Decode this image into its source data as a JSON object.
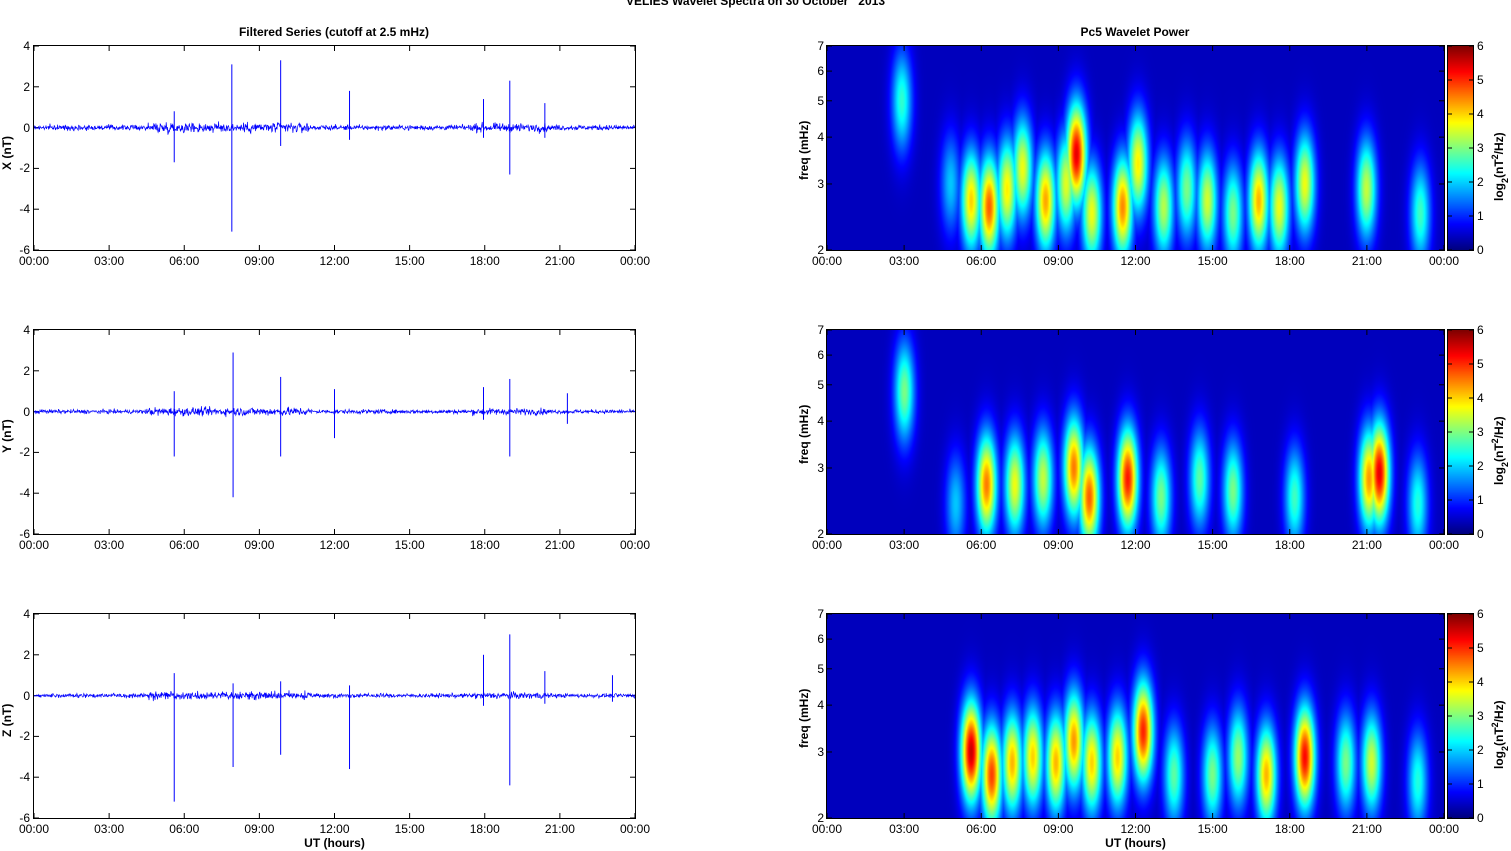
{
  "title": "VELIES Wavelet Spectra on 30 October   2013",
  "left_panel_title": "Filtered Series (cutoff at 2.5 mHz)",
  "right_panel_title": "Pc5 Wavelet Power",
  "x_axis_label": "UT (hours)",
  "colorbar": {
    "label": "log2(nT^2/Hz)",
    "ticks": [
      "0",
      "1",
      "2",
      "3",
      "4",
      "5",
      "6"
    ],
    "colormap": "jet",
    "range": [
      0,
      6
    ]
  },
  "colors": {
    "series_line": "#0000ff",
    "spectrogram_background": "#00008f"
  },
  "chart_data": [
    {
      "type": "line",
      "component": "X",
      "ylabel": "X (nT)",
      "ylim": [
        -6,
        4
      ],
      "yticks": [
        "4",
        "2",
        "0",
        "-2",
        "-4",
        "-6"
      ],
      "xticks": [
        "00:00",
        "03:00",
        "06:00",
        "09:00",
        "12:00",
        "15:00",
        "18:00",
        "21:00",
        "00:00"
      ],
      "xlim_hours": [
        0,
        24
      ],
      "baseline_noise_nT": 0.25,
      "spikes": [
        {
          "t": 5.6,
          "hi": 0.8,
          "lo": -1.7
        },
        {
          "t": 7.9,
          "hi": 3.1,
          "lo": -5.1
        },
        {
          "t": 9.85,
          "hi": 3.3,
          "lo": -0.9
        },
        {
          "t": 12.6,
          "hi": 1.8,
          "lo": -0.6
        },
        {
          "t": 17.95,
          "hi": 1.4,
          "lo": -0.5
        },
        {
          "t": 19.0,
          "hi": 2.3,
          "lo": -2.3
        },
        {
          "t": 20.4,
          "hi": 1.2,
          "lo": -0.5
        }
      ]
    },
    {
      "type": "line",
      "component": "Y",
      "ylabel": "Y (nT)",
      "ylim": [
        -6,
        4
      ],
      "yticks": [
        "4",
        "2",
        "0",
        "-2",
        "-4",
        "-6"
      ],
      "xticks": [
        "00:00",
        "03:00",
        "06:00",
        "09:00",
        "12:00",
        "15:00",
        "18:00",
        "21:00",
        "00:00"
      ],
      "xlim_hours": [
        0,
        24
      ],
      "baseline_noise_nT": 0.2,
      "spikes": [
        {
          "t": 5.6,
          "hi": 1.0,
          "lo": -2.2
        },
        {
          "t": 7.95,
          "hi": 2.9,
          "lo": -4.2
        },
        {
          "t": 9.85,
          "hi": 1.7,
          "lo": -2.2
        },
        {
          "t": 12.0,
          "hi": 1.1,
          "lo": -1.3
        },
        {
          "t": 17.95,
          "hi": 1.2,
          "lo": -0.4
        },
        {
          "t": 19.0,
          "hi": 1.6,
          "lo": -2.2
        },
        {
          "t": 21.3,
          "hi": 0.9,
          "lo": -0.6
        }
      ]
    },
    {
      "type": "line",
      "component": "Z",
      "ylabel": "Z (nT)",
      "ylim": [
        -6,
        4
      ],
      "yticks": [
        "4",
        "2",
        "0",
        "-2",
        "-4",
        "-6"
      ],
      "xticks": [
        "00:00",
        "03:00",
        "06:00",
        "09:00",
        "12:00",
        "15:00",
        "18:00",
        "21:00",
        "00:00"
      ],
      "xlim_hours": [
        0,
        24
      ],
      "baseline_noise_nT": 0.2,
      "spikes": [
        {
          "t": 5.6,
          "hi": 1.1,
          "lo": -5.2
        },
        {
          "t": 7.95,
          "hi": 0.6,
          "lo": -3.5
        },
        {
          "t": 9.85,
          "hi": 0.7,
          "lo": -2.9
        },
        {
          "t": 12.6,
          "hi": 0.5,
          "lo": -3.6
        },
        {
          "t": 17.95,
          "hi": 2.0,
          "lo": -0.5
        },
        {
          "t": 19.0,
          "hi": 3.0,
          "lo": -4.4
        },
        {
          "t": 20.4,
          "hi": 1.2,
          "lo": -0.4
        },
        {
          "t": 23.1,
          "hi": 1.0,
          "lo": -0.3
        }
      ]
    },
    {
      "type": "heatmap",
      "component": "X",
      "ylabel": "freq (mHz)",
      "yscale": "log",
      "ylim": [
        2,
        7
      ],
      "yticks": [
        "7",
        "6",
        "5",
        "4",
        "3",
        "2"
      ],
      "xticks": [
        "00:00",
        "03:00",
        "06:00",
        "09:00",
        "12:00",
        "15:00",
        "18:00",
        "21:00",
        "00:00"
      ],
      "xlim_hours": [
        0,
        24
      ],
      "blobs": [
        {
          "t": 2.9,
          "f": 5.0,
          "p": 2.5
        },
        {
          "t": 4.8,
          "f": 3.0,
          "p": 1.8
        },
        {
          "t": 5.6,
          "f": 2.7,
          "p": 4.2
        },
        {
          "t": 6.3,
          "f": 2.6,
          "p": 5.0
        },
        {
          "t": 7.0,
          "f": 2.9,
          "p": 4.0
        },
        {
          "t": 7.6,
          "f": 3.3,
          "p": 3.8
        },
        {
          "t": 8.5,
          "f": 2.7,
          "p": 4.5
        },
        {
          "t": 9.3,
          "f": 3.0,
          "p": 3.7
        },
        {
          "t": 9.7,
          "f": 3.6,
          "p": 5.8
        },
        {
          "t": 10.3,
          "f": 2.5,
          "p": 3.8
        },
        {
          "t": 11.5,
          "f": 2.6,
          "p": 4.7
        },
        {
          "t": 12.1,
          "f": 3.4,
          "p": 4.0
        },
        {
          "t": 13.1,
          "f": 2.6,
          "p": 3.4
        },
        {
          "t": 14.0,
          "f": 2.9,
          "p": 3.0
        },
        {
          "t": 14.8,
          "f": 2.7,
          "p": 3.6
        },
        {
          "t": 15.8,
          "f": 2.5,
          "p": 3.0
        },
        {
          "t": 16.8,
          "f": 2.7,
          "p": 4.4
        },
        {
          "t": 17.6,
          "f": 2.6,
          "p": 3.8
        },
        {
          "t": 18.6,
          "f": 3.0,
          "p": 3.8
        },
        {
          "t": 21.0,
          "f": 2.9,
          "p": 3.5
        },
        {
          "t": 23.1,
          "f": 2.5,
          "p": 2.6
        }
      ]
    },
    {
      "type": "heatmap",
      "component": "Y",
      "ylabel": "freq (mHz)",
      "yscale": "log",
      "ylim": [
        2,
        7
      ],
      "yticks": [
        "7",
        "6",
        "5",
        "4",
        "3",
        "2"
      ],
      "xticks": [
        "00:00",
        "03:00",
        "06:00",
        "09:00",
        "12:00",
        "15:00",
        "18:00",
        "21:00",
        "00:00"
      ],
      "xlim_hours": [
        0,
        24
      ],
      "blobs": [
        {
          "t": 3.0,
          "f": 4.8,
          "p": 3.0
        },
        {
          "t": 5.0,
          "f": 2.4,
          "p": 1.8
        },
        {
          "t": 6.2,
          "f": 2.7,
          "p": 4.8
        },
        {
          "t": 7.3,
          "f": 2.7,
          "p": 3.8
        },
        {
          "t": 8.4,
          "f": 2.8,
          "p": 3.5
        },
        {
          "t": 9.6,
          "f": 3.0,
          "p": 4.8
        },
        {
          "t": 10.2,
          "f": 2.5,
          "p": 5.0
        },
        {
          "t": 11.7,
          "f": 2.8,
          "p": 5.5
        },
        {
          "t": 13.0,
          "f": 2.5,
          "p": 3.0
        },
        {
          "t": 14.5,
          "f": 2.8,
          "p": 2.8
        },
        {
          "t": 15.8,
          "f": 2.6,
          "p": 3.0
        },
        {
          "t": 18.2,
          "f": 2.5,
          "p": 2.6
        },
        {
          "t": 21.1,
          "f": 2.8,
          "p": 4.6
        },
        {
          "t": 21.5,
          "f": 2.9,
          "p": 5.8
        },
        {
          "t": 23.0,
          "f": 2.4,
          "p": 2.4
        }
      ]
    },
    {
      "type": "heatmap",
      "component": "Z",
      "ylabel": "freq (mHz)",
      "yscale": "log",
      "ylim": [
        2,
        7
      ],
      "yticks": [
        "7",
        "6",
        "5",
        "4",
        "3",
        "2"
      ],
      "xticks": [
        "00:00",
        "03:00",
        "06:00",
        "09:00",
        "12:00",
        "15:00",
        "18:00",
        "21:00",
        "00:00"
      ],
      "xlim_hours": [
        0,
        24
      ],
      "blobs": [
        {
          "t": 5.6,
          "f": 3.0,
          "p": 6.0
        },
        {
          "t": 6.4,
          "f": 2.6,
          "p": 5.2
        },
        {
          "t": 7.2,
          "f": 2.8,
          "p": 4.4
        },
        {
          "t": 8.0,
          "f": 2.9,
          "p": 4.2
        },
        {
          "t": 8.9,
          "f": 2.8,
          "p": 4.4
        },
        {
          "t": 9.6,
          "f": 3.2,
          "p": 4.6
        },
        {
          "t": 10.3,
          "f": 2.8,
          "p": 4.2
        },
        {
          "t": 11.3,
          "f": 2.9,
          "p": 4.2
        },
        {
          "t": 12.3,
          "f": 3.4,
          "p": 5.4
        },
        {
          "t": 13.5,
          "f": 2.6,
          "p": 2.8
        },
        {
          "t": 15.0,
          "f": 2.6,
          "p": 3.0
        },
        {
          "t": 16.0,
          "f": 2.9,
          "p": 3.2
        },
        {
          "t": 17.1,
          "f": 2.6,
          "p": 4.4
        },
        {
          "t": 18.6,
          "f": 2.9,
          "p": 5.6
        },
        {
          "t": 20.2,
          "f": 2.8,
          "p": 3.0
        },
        {
          "t": 21.2,
          "f": 2.8,
          "p": 3.6
        },
        {
          "t": 23.0,
          "f": 2.5,
          "p": 2.4
        }
      ]
    }
  ]
}
